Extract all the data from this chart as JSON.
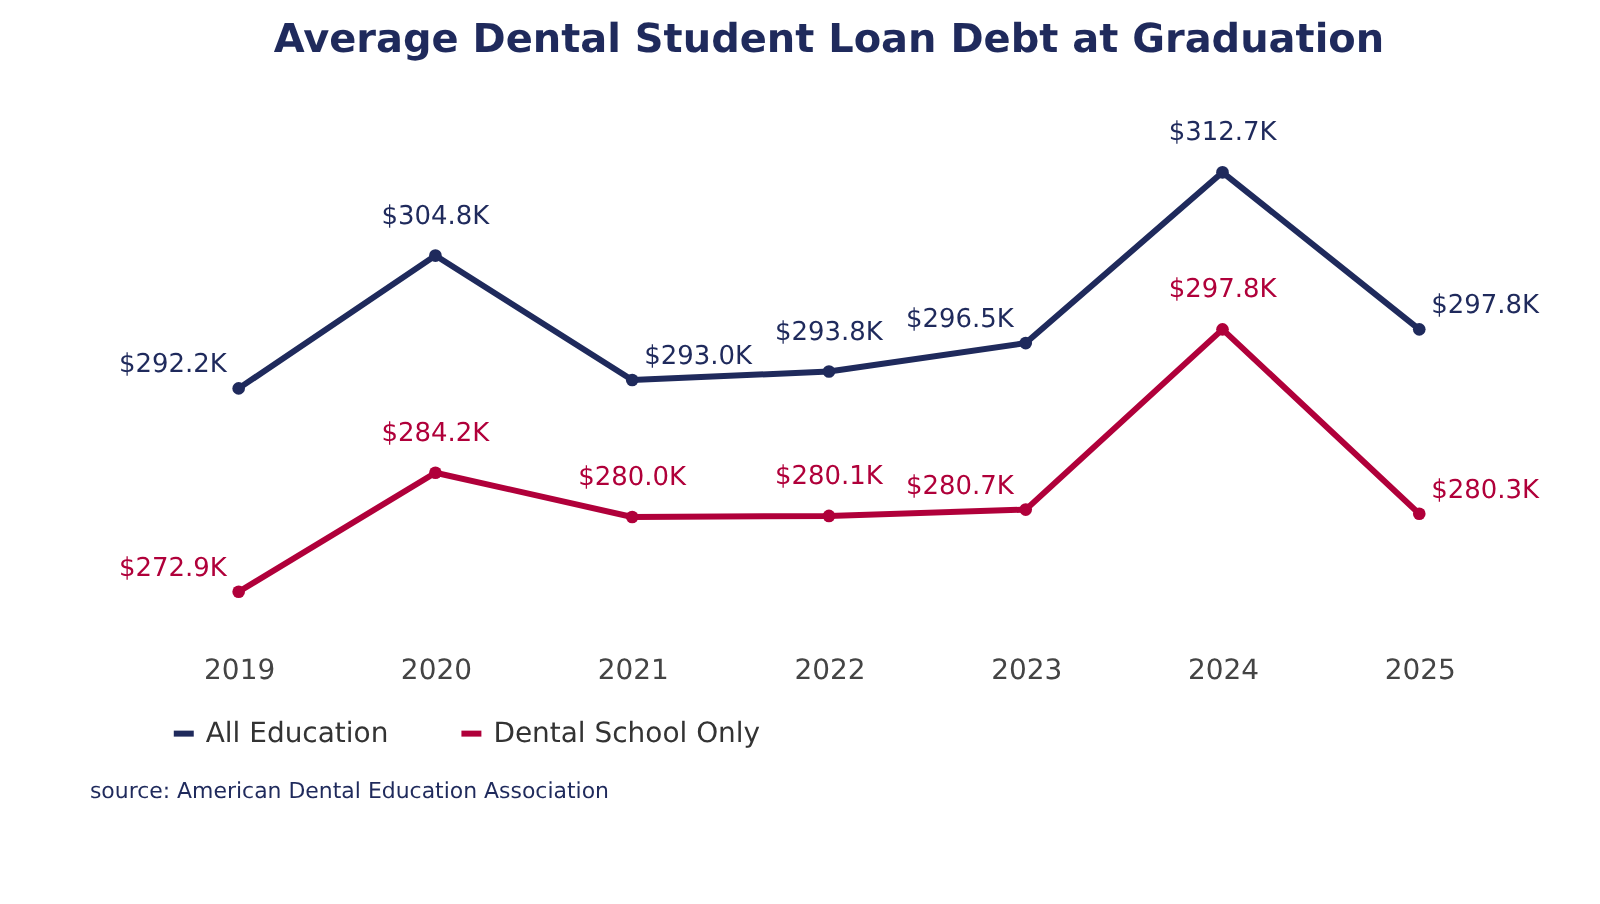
{
  "chart_data": {
    "type": "line",
    "title": "Average Dental Student Loan Debt at Graduation",
    "categories": [
      "2019",
      "2020",
      "2021",
      "2022",
      "2023",
      "2024",
      "2025"
    ],
    "series": [
      {
        "name": "All Education",
        "color": "#1f2a5c",
        "values": [
          292.2,
          304.8,
          293.0,
          293.8,
          296.5,
          312.7,
          297.8
        ],
        "value_labels": [
          "$292.2K",
          "$304.8K",
          "$293.0K",
          "$293.8K",
          "$296.5K",
          "$312.7K",
          "$297.8K"
        ]
      },
      {
        "name": "Dental School Only",
        "color": "#b0003a",
        "values": [
          272.9,
          284.2,
          280.0,
          280.1,
          280.7,
          297.8,
          280.3
        ],
        "value_labels": [
          "$272.9K",
          "$284.2K",
          "$280.0K",
          "$280.1K",
          "$280.7K",
          "$297.8K",
          "$280.3K"
        ]
      }
    ],
    "marker": "circle",
    "line_style": "solid",
    "grid": false,
    "legend": "bottom",
    "tick_labels": "x",
    "annotations": [
      "source: American Dental Education Association"
    ]
  }
}
